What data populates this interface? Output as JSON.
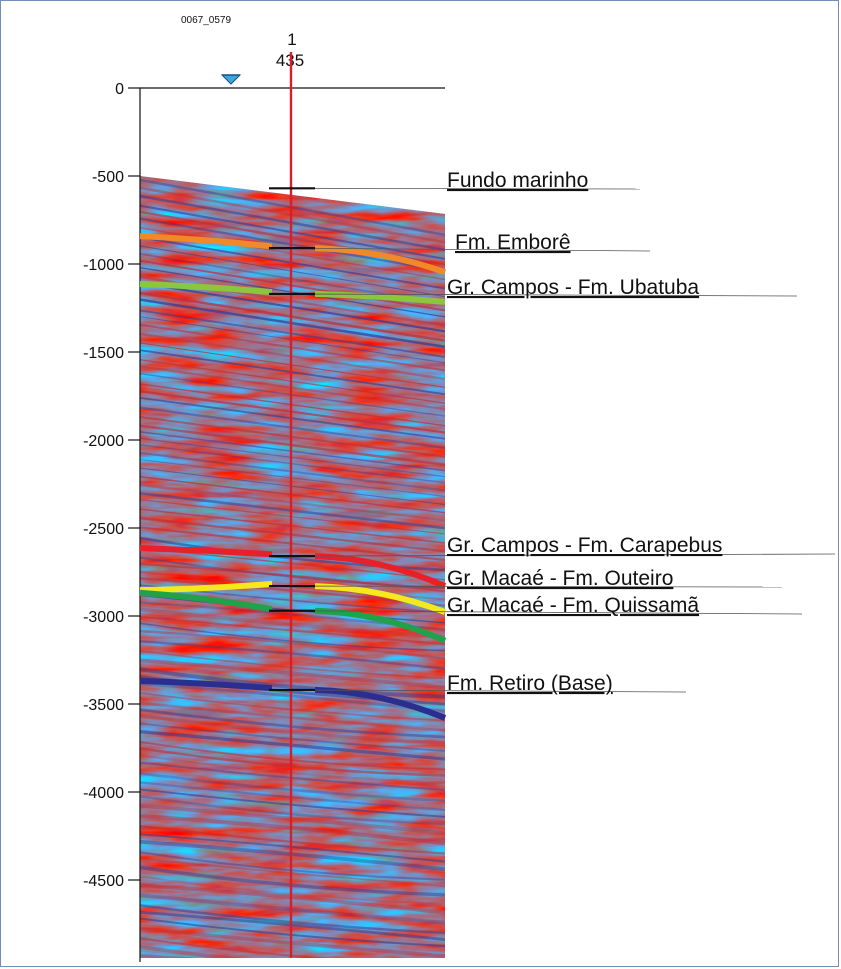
{
  "well": {
    "name": "0067_0579",
    "trace_number": "1",
    "shotpoint": "435"
  },
  "depth_axis": {
    "ticks": [
      {
        "value": 0,
        "label": "0"
      },
      {
        "value": -500,
        "label": "-500"
      },
      {
        "value": -1000,
        "label": "-1000"
      },
      {
        "value": -1500,
        "label": "-1500"
      },
      {
        "value": -2000,
        "label": "-2000"
      },
      {
        "value": -2500,
        "label": "-2500"
      },
      {
        "value": -3000,
        "label": "-3000"
      },
      {
        "value": -3500,
        "label": "-3500"
      },
      {
        "value": -4000,
        "label": "-4000"
      },
      {
        "value": -4500,
        "label": "-4500"
      }
    ]
  },
  "horizons": [
    {
      "key": "fundo-marinho",
      "label": "Fundo marinho",
      "depth": -570,
      "color": "#000000"
    },
    {
      "key": "fm-embore",
      "label": "Fm. Emborê",
      "depth": -910,
      "color": "#f08a28"
    },
    {
      "key": "fm-ubatuba",
      "label": "Gr. Campos - Fm. Ubatuba",
      "depth": -1170,
      "color": "#8cc63f"
    },
    {
      "key": "fm-carapebus",
      "label": "Gr. Campos - Fm. Carapebus",
      "depth": -2660,
      "color": "#e8202a"
    },
    {
      "key": "fm-outeiro",
      "label": "Gr. Macaé - Fm. Outeiro",
      "depth": -2830,
      "color": "#f5e81c"
    },
    {
      "key": "fm-quissama",
      "label": "Gr. Macaé - Fm. Quissamã",
      "depth": -2970,
      "color": "#1fa24a"
    },
    {
      "key": "fm-retiro",
      "label": "Fm. Retiro (Base)",
      "depth": -3420,
      "color": "#2a2f8f"
    }
  ],
  "colors": {
    "well_line": "#d81e2a",
    "wavelet_red": "#b8323e",
    "wavelet_blue": "#2f3f9a",
    "background": "#ffffff",
    "marker": "#3aa7e0"
  }
}
